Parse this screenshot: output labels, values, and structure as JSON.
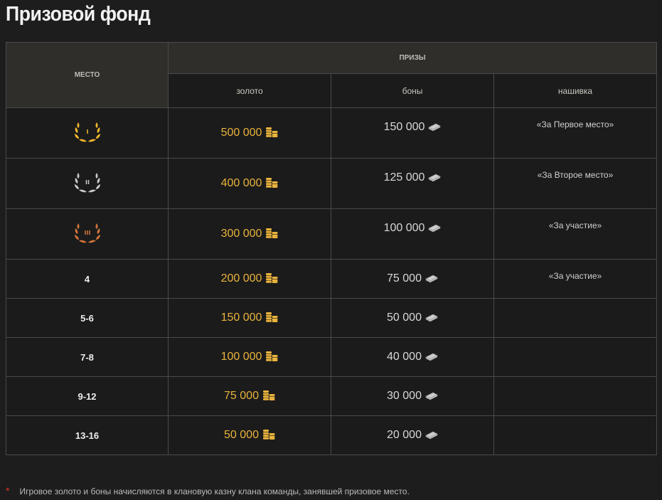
{
  "title": "Призовой фонд",
  "headers": {
    "place": "МЕСТО",
    "prizes": "ПРИЗЫ",
    "gold": "золото",
    "bonds": "боны",
    "patch": "нашивка"
  },
  "rows": [
    {
      "place": "I",
      "medal": "gold",
      "medal_color": "#f1b72a",
      "gold": "500 000",
      "bonds": "150 000",
      "patch": "«За Первое место»"
    },
    {
      "place": "II",
      "medal": "silver",
      "medal_color": "#c9c9c9",
      "gold": "400 000",
      "bonds": "125 000",
      "patch": "«За Второе место»"
    },
    {
      "place": "III",
      "medal": "bronze",
      "medal_color": "#d0743a",
      "gold": "300 000",
      "bonds": "100 000",
      "patch": "«За участие»"
    },
    {
      "place": "4",
      "gold": "200 000",
      "bonds": "75 000",
      "patch": "«За участие»"
    },
    {
      "place": "5-6",
      "gold": "150 000",
      "bonds": "50 000",
      "patch": ""
    },
    {
      "place": "7-8",
      "gold": "100 000",
      "bonds": "40 000",
      "patch": ""
    },
    {
      "place": "9-12",
      "gold": "75 000",
      "bonds": "30 000",
      "patch": ""
    },
    {
      "place": "13-16",
      "gold": "50 000",
      "bonds": "20 000",
      "patch": ""
    }
  ],
  "icons": {
    "gold": "gold-coins-icon",
    "bonds": "bonds-stack-icon",
    "medal": "laurel-wreath-icon"
  },
  "footnote": {
    "mark": "*",
    "text": "Игровое золото и боны начисляются в клановую казну клана команды, занявшей призовое место."
  }
}
